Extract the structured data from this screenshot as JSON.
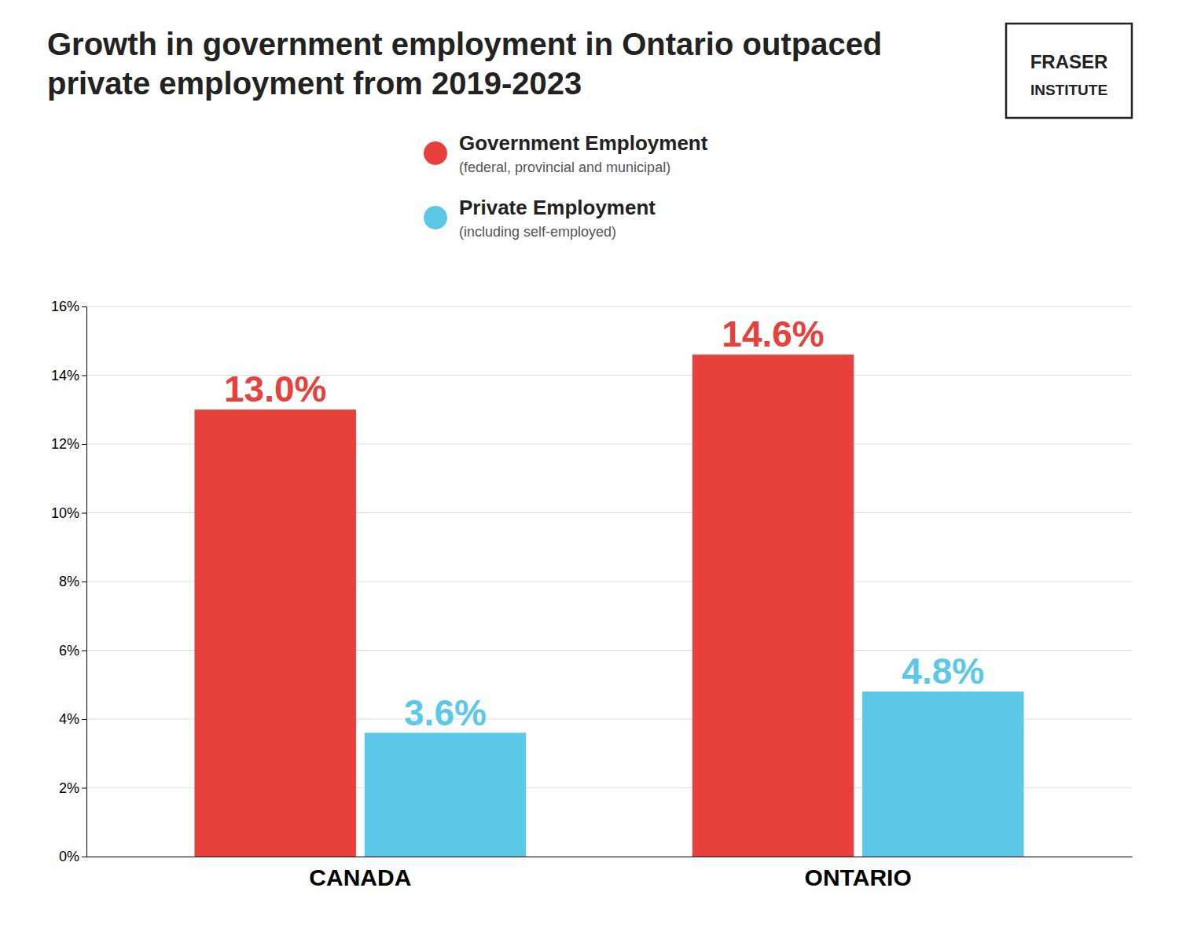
{
  "chart_data": {
    "type": "bar",
    "title": [
      "Growth in government employment in Ontario outpaced",
      "private employment from 2019-2023"
    ],
    "categories": [
      "CANADA",
      "ONTARIO"
    ],
    "series": [
      {
        "name": "Government Employment",
        "color": "#e8403a",
        "values": [
          13.0,
          14.6
        ],
        "value_labels": [
          "13.0%",
          "14.6%"
        ]
      },
      {
        "name": "Private Employment",
        "color": "#5bc8e8",
        "values": [
          3.6,
          4.8
        ],
        "value_labels": [
          "3.6%",
          "4.8%"
        ]
      }
    ],
    "annotations": [
      "(federal, provincial and municipal)",
      "(including self-employed)",
      "FRASER",
      "INSTITUTE"
    ],
    "ylim": [
      0,
      16
    ],
    "yticks": [
      {
        "value": 0,
        "label": "0%"
      },
      {
        "value": 2,
        "label": "2%"
      },
      {
        "value": 4,
        "label": "4%"
      },
      {
        "value": 6,
        "label": "6%"
      },
      {
        "value": 8,
        "label": "8%"
      },
      {
        "value": 10,
        "label": "10%"
      },
      {
        "value": 12,
        "label": "12%"
      },
      {
        "value": 14,
        "label": "14%"
      },
      {
        "value": 16,
        "label": "16%"
      }
    ],
    "grid": true,
    "legend": "top",
    "data_labels": true
  }
}
